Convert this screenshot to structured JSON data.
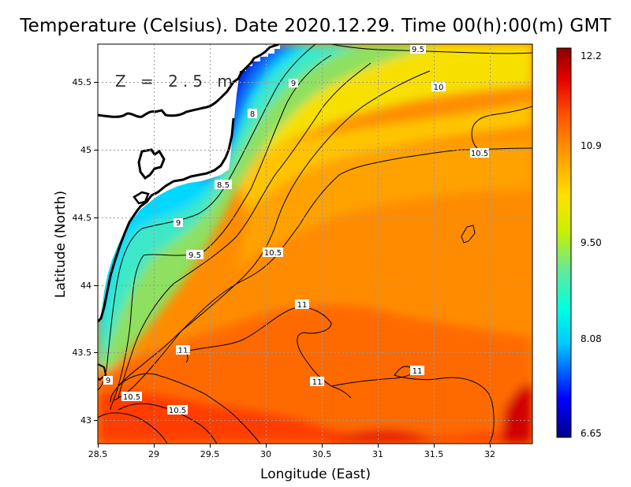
{
  "title": "Temperature (Celsius). Date 2020.12.29. Time 00(h):00(m) GMT",
  "depth_label": "Z = 2.5 m",
  "x_axis": {
    "label": "Longitude (East)",
    "ticks": [
      "28.5",
      "29",
      "29.5",
      "30",
      "30.5",
      "31",
      "31.5",
      "32"
    ]
  },
  "y_axis": {
    "label": "Latitude (North)",
    "ticks": [
      "43",
      "43.5",
      "44",
      "44.5",
      "45",
      "45.5"
    ]
  },
  "colorbar": {
    "ticks": [
      "12.2",
      "10.9",
      "9.50",
      "8.08",
      "6.65"
    ]
  },
  "contour_labels": {
    "c1": "9.5",
    "c2": "10",
    "c3": "9",
    "c4": "8",
    "c5": "10.5",
    "c6": "8.5",
    "c7": "9",
    "c8": "9.5",
    "c9": "10.5",
    "c10": "11",
    "c11": "11",
    "c12": "11",
    "c13": "11",
    "c14": "9",
    "c15": "10.5",
    "c16": "10.5"
  },
  "chart_data": {
    "type": "heatmap",
    "variable": "Temperature (Celsius)",
    "date": "2020.12.29",
    "time": "00(h):00(m) GMT",
    "depth": "Z = 2.5 m",
    "xlabel": "Longitude (East)",
    "ylabel": "Latitude (North)",
    "xlim": [
      28.5,
      32.4
    ],
    "ylim": [
      42.8,
      45.8
    ],
    "color_range": [
      6.65,
      12.2
    ],
    "colormap": [
      "#00008b",
      "#0000ff",
      "#00c8ff",
      "#00ffe0",
      "#66e899",
      "#c8f000",
      "#ffe000",
      "#ffa000",
      "#ff5a00",
      "#e60000",
      "#8b0000"
    ],
    "colorbar_ticks": [
      12.2,
      10.9,
      9.5,
      8.08,
      6.65
    ],
    "contour_levels": [
      8,
      8.5,
      9,
      9.5,
      10,
      10.5,
      11
    ],
    "grid": true
  }
}
